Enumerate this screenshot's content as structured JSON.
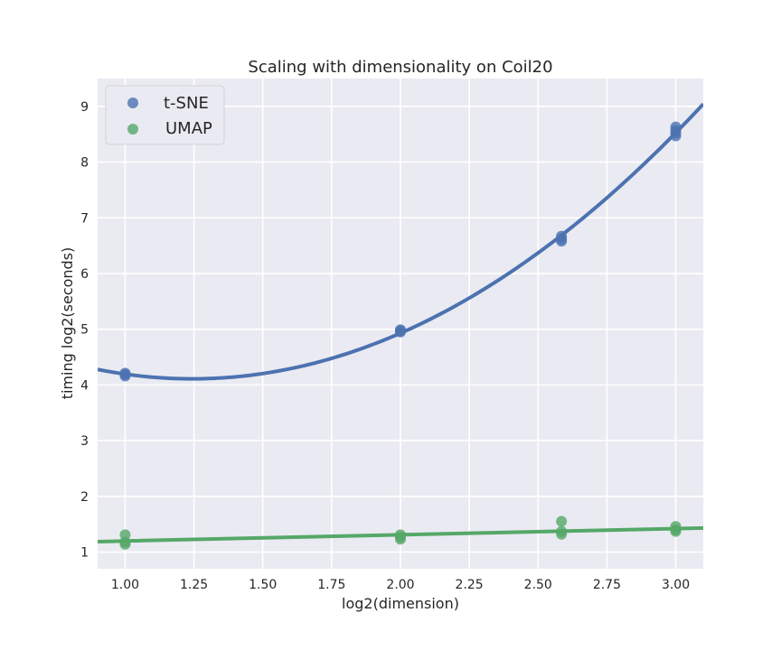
{
  "chart_data": {
    "type": "scatter",
    "title": "Scaling with dimensionality on Coil20",
    "xlabel": "log2(dimension)",
    "ylabel": "timing log2(seconds)",
    "xlim": [
      0.9,
      3.1
    ],
    "ylim": [
      0.7,
      9.5
    ],
    "xticks": [
      "1.00",
      "1.25",
      "1.50",
      "1.75",
      "2.00",
      "2.25",
      "2.50",
      "2.75",
      "3.00"
    ],
    "yticks": [
      "1",
      "2",
      "3",
      "4",
      "5",
      "6",
      "7",
      "8",
      "9"
    ],
    "grid": true,
    "legend_position": "top-left",
    "series": [
      {
        "name": "t-SNE",
        "color": "#4c72b0",
        "points": [
          [
            1.0,
            4.16
          ],
          [
            1.0,
            4.19
          ],
          [
            1.0,
            4.21
          ],
          [
            2.0,
            4.95
          ],
          [
            2.0,
            4.97
          ],
          [
            2.0,
            4.99
          ],
          [
            2.585,
            6.58
          ],
          [
            2.585,
            6.62
          ],
          [
            2.585,
            6.67
          ],
          [
            3.0,
            8.47
          ],
          [
            3.0,
            8.52
          ],
          [
            3.0,
            8.57
          ],
          [
            3.0,
            8.63
          ]
        ],
        "fit": {
          "kind": "quadratic",
          "x_range": [
            0.9,
            3.1
          ]
        }
      },
      {
        "name": "UMAP",
        "color": "#55a868",
        "points": [
          [
            1.0,
            1.14
          ],
          [
            1.0,
            1.18
          ],
          [
            1.0,
            1.31
          ],
          [
            2.0,
            1.23
          ],
          [
            2.0,
            1.27
          ],
          [
            2.0,
            1.31
          ],
          [
            2.585,
            1.32
          ],
          [
            2.585,
            1.37
          ],
          [
            2.585,
            1.55
          ],
          [
            3.0,
            1.37
          ],
          [
            3.0,
            1.4
          ],
          [
            3.0,
            1.46
          ]
        ],
        "fit": {
          "kind": "linear",
          "x_range": [
            0.9,
            3.1
          ]
        }
      }
    ]
  }
}
